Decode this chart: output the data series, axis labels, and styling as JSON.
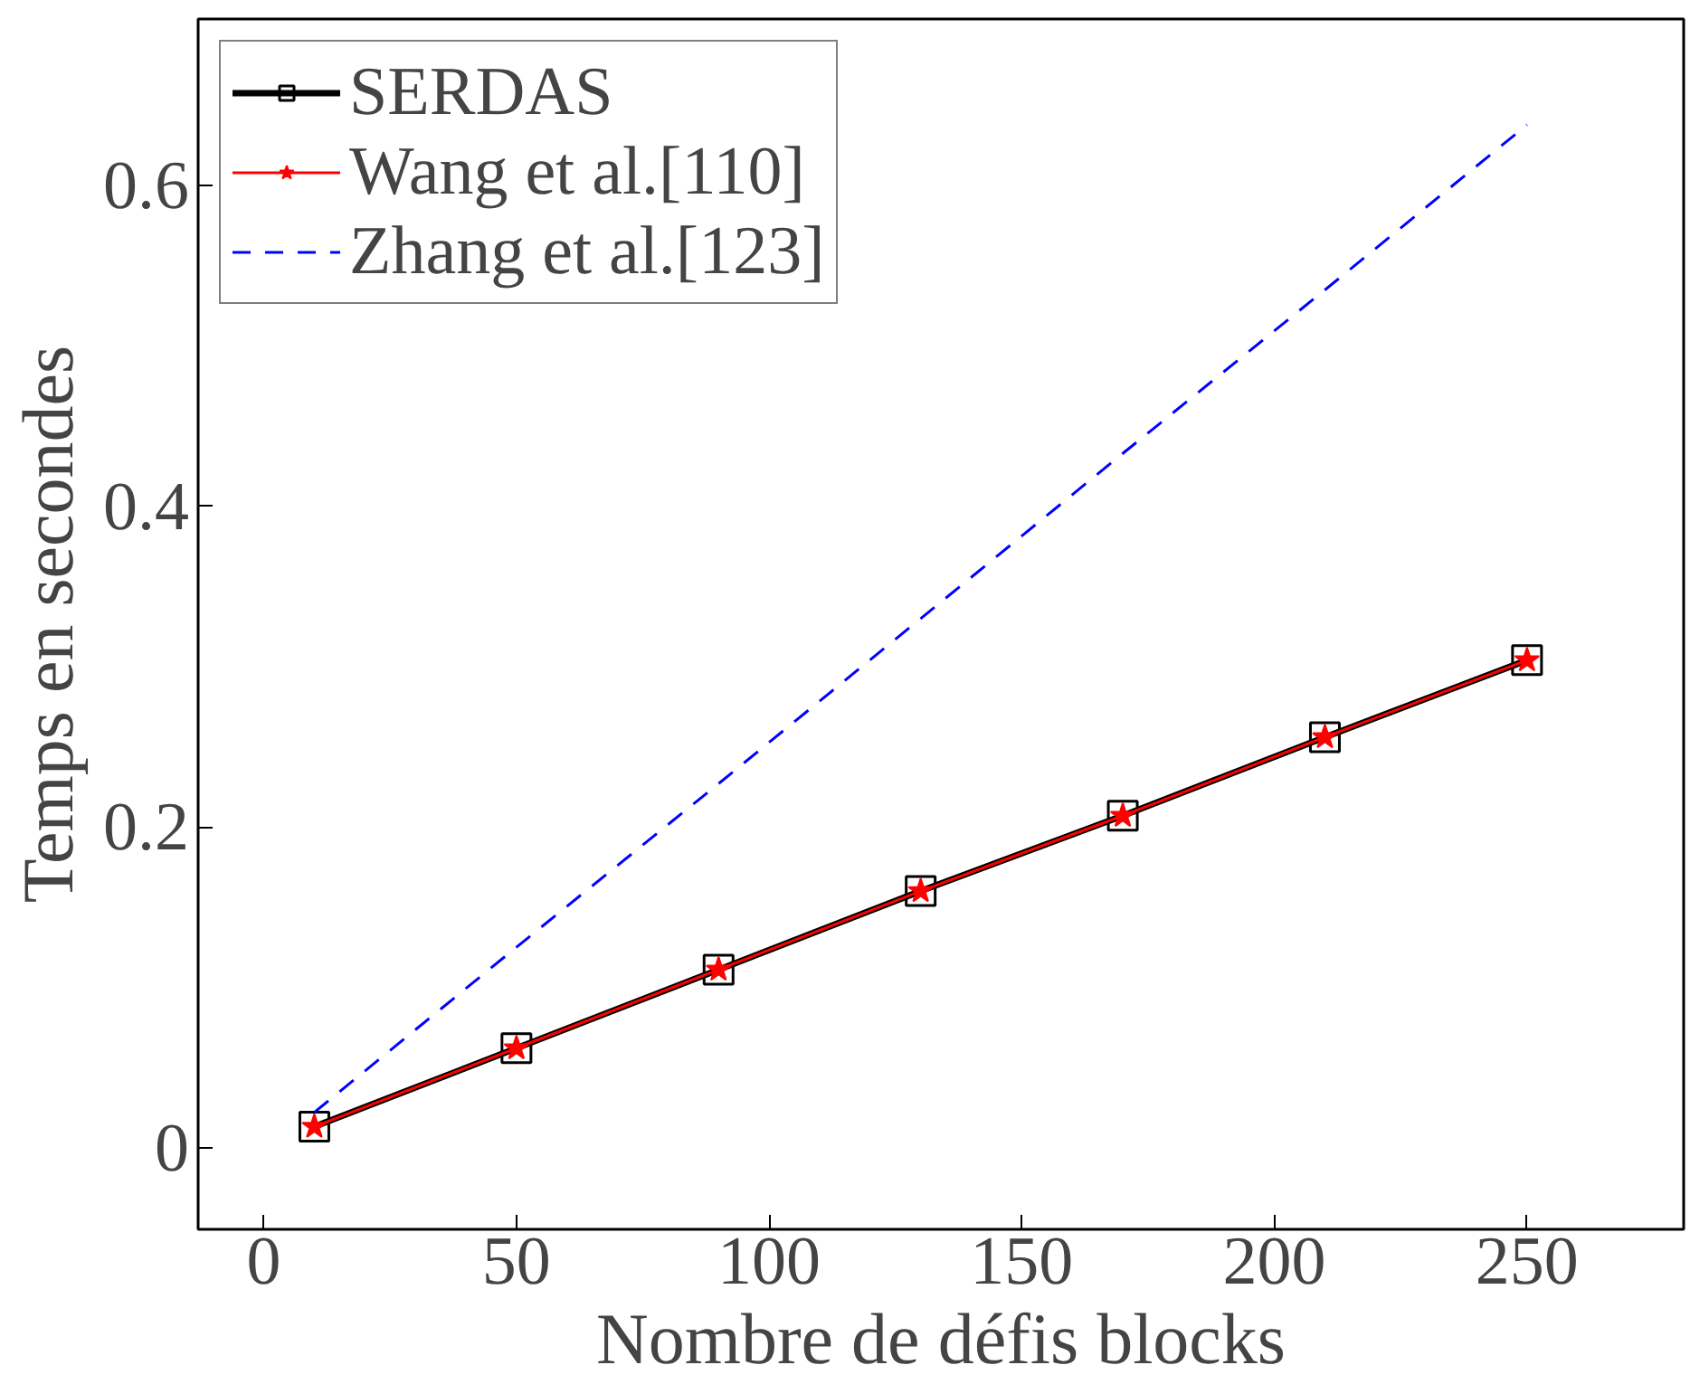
{
  "chart_data": {
    "type": "line",
    "xlabel": "Nombre de défis blocks",
    "ylabel": "Temps en secondes",
    "x": [
      10,
      50,
      90,
      130,
      170,
      210,
      250
    ],
    "series": [
      {
        "name": "SERDAS",
        "color": "#000000",
        "marker": "square",
        "line_style": "solid",
        "values": [
          0.013,
          0.062,
          0.111,
          0.16,
          0.207,
          0.256,
          0.304
        ]
      },
      {
        "name": "Wang et al.[110]",
        "color": "#ff0000",
        "marker": "star",
        "line_style": "solid",
        "values": [
          0.013,
          0.062,
          0.111,
          0.16,
          0.207,
          0.256,
          0.304
        ]
      },
      {
        "name": "Zhang et al.[123]",
        "color": "#0000ff",
        "marker": "none",
        "line_style": "dashed",
        "values": [
          0.022,
          0.125,
          0.227,
          0.33,
          0.433,
          0.535,
          0.638
        ]
      }
    ],
    "xlim": [
      -13,
      281
    ],
    "ylim": [
      -0.051,
      0.704
    ],
    "xticks": [
      0,
      50,
      100,
      150,
      200,
      250
    ],
    "yticks": [
      0,
      0.2,
      0.4,
      0.6
    ],
    "grid": false,
    "legend": "top left"
  }
}
